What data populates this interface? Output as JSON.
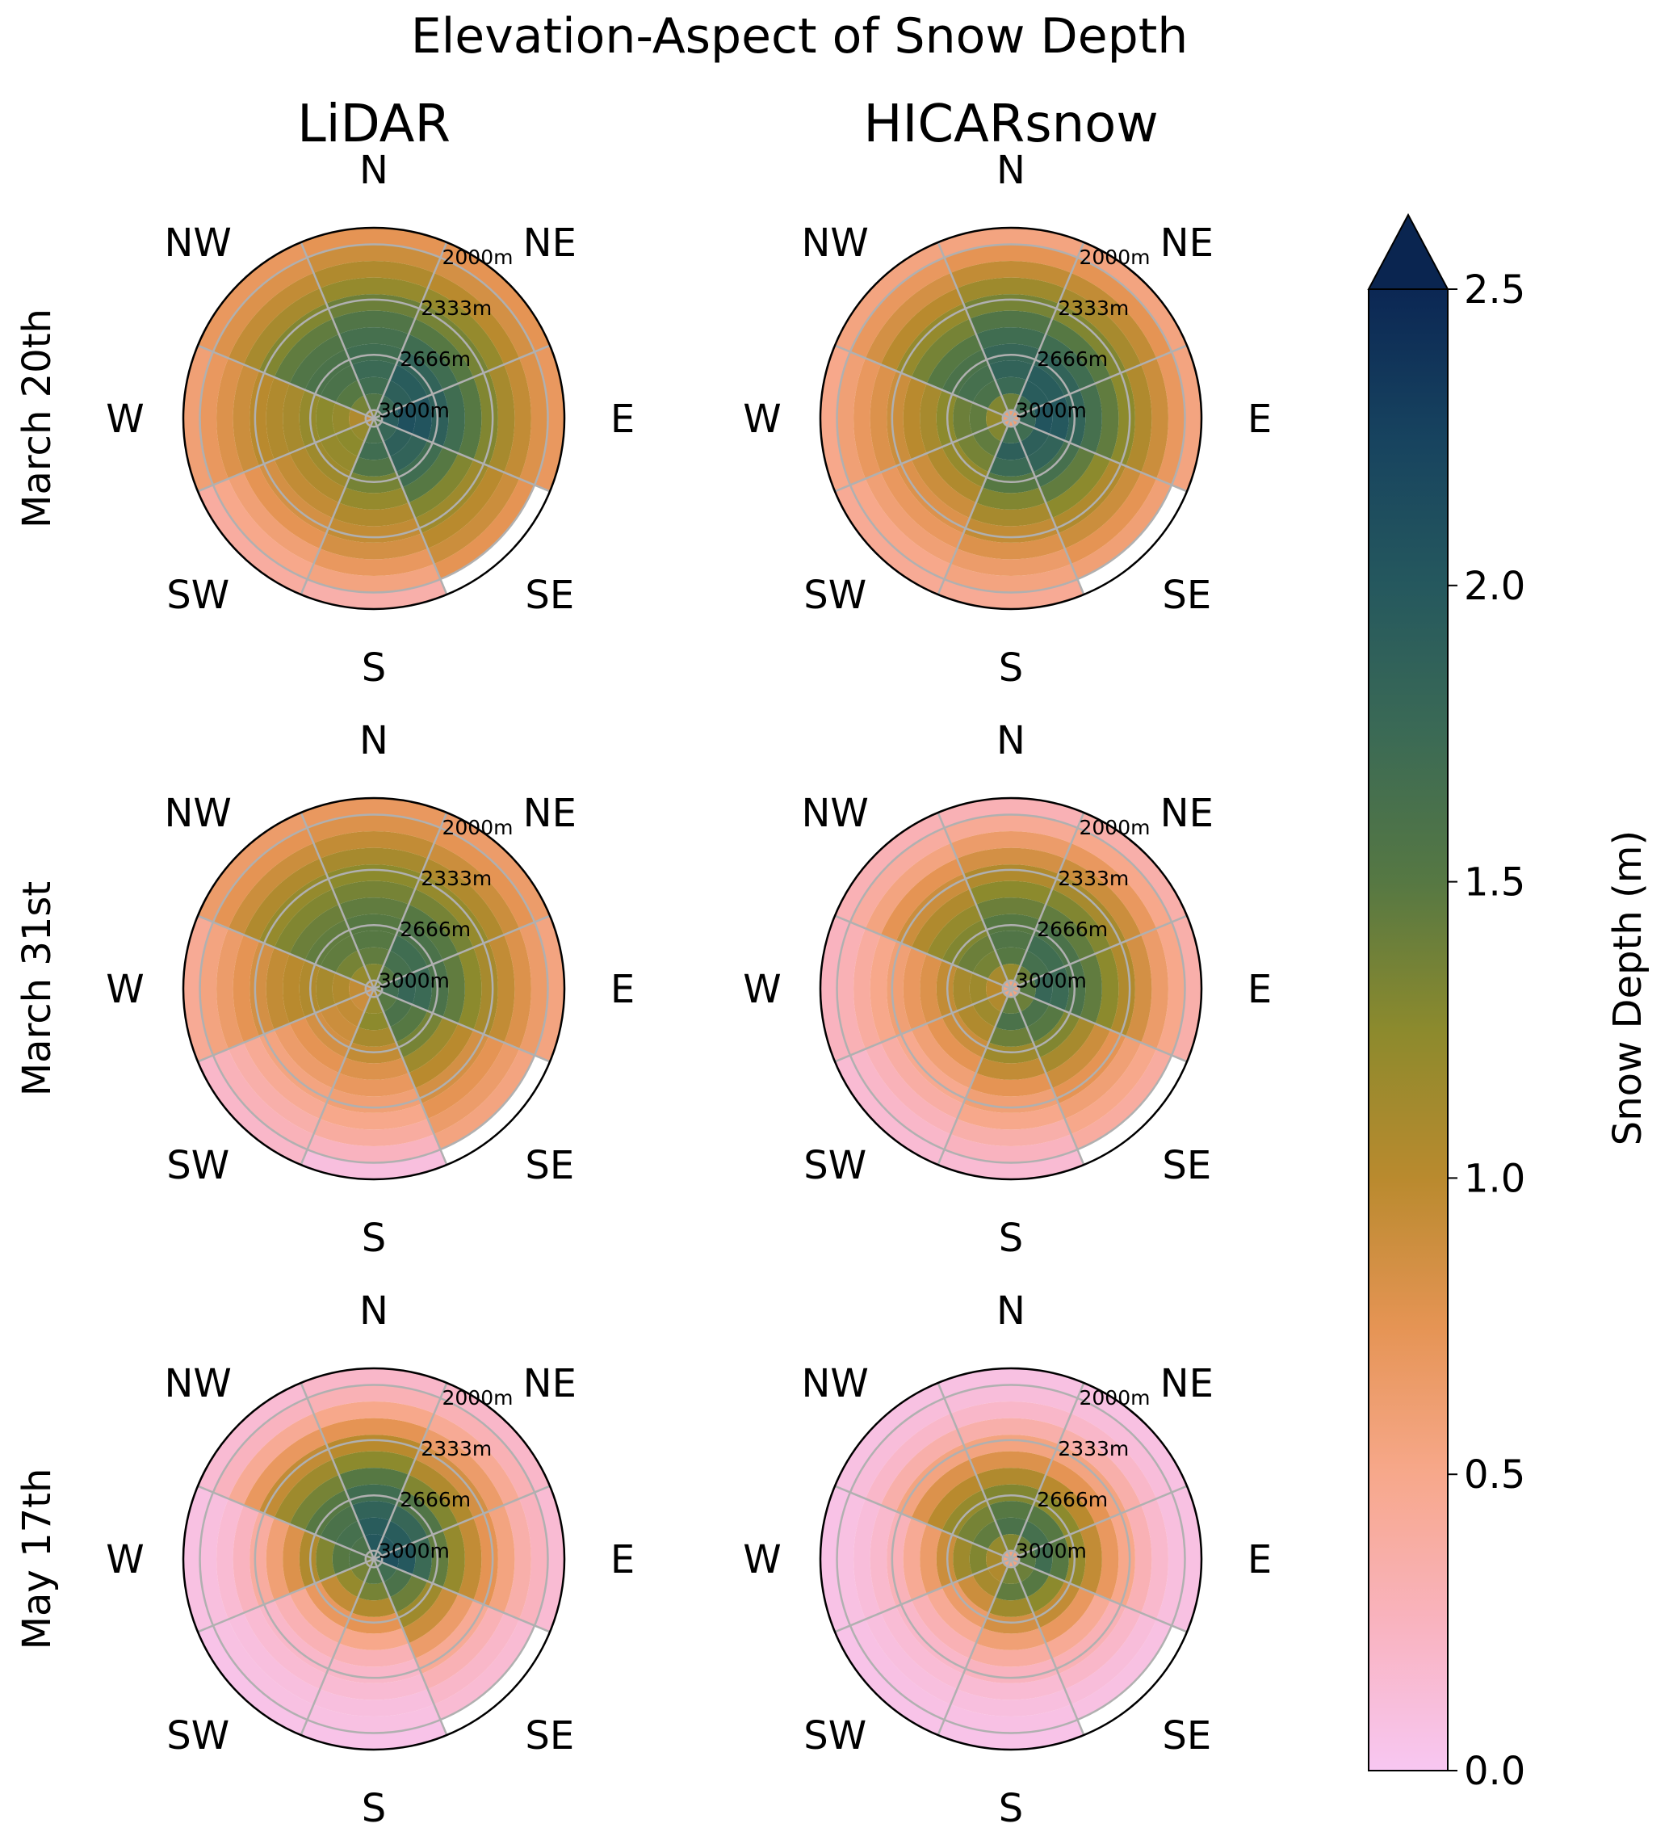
{
  "figure": {
    "title": "Elevation-Aspect of Snow Depth",
    "columns": [
      "LiDAR",
      "HICARsnow"
    ],
    "rows": [
      "March 20th",
      "March 31st",
      "May 17th"
    ]
  },
  "colorbar": {
    "label": "Snow Depth (m)",
    "ticks": [
      "0.0",
      "0.5",
      "1.0",
      "1.5",
      "2.0",
      "2.5"
    ],
    "vmin": 0.0,
    "vmax": 2.5,
    "extend": "max",
    "colors": {
      "stops": [
        {
          "v": 0.0,
          "c": "#f8c7f2"
        },
        {
          "v": 0.25,
          "c": "#f9b3bf"
        },
        {
          "v": 0.5,
          "c": "#f7a88b"
        },
        {
          "v": 0.75,
          "c": "#e59454"
        },
        {
          "v": 1.0,
          "c": "#b98a2e"
        },
        {
          "v": 1.25,
          "c": "#8c8a2d"
        },
        {
          "v": 1.5,
          "c": "#567843"
        },
        {
          "v": 1.75,
          "c": "#3b6a55"
        },
        {
          "v": 2.0,
          "c": "#25585e"
        },
        {
          "v": 2.25,
          "c": "#17435f"
        },
        {
          "v": 2.5,
          "c": "#0b2754"
        }
      ],
      "over": "#0a2550",
      "grid": "#b0b0b0"
    }
  },
  "chart_data": {
    "type": "polar-heatmap",
    "title": "Elevation-Aspect of Snow Depth",
    "aspects": [
      "N",
      "NE",
      "E",
      "SE",
      "S",
      "SW",
      "W",
      "NW"
    ],
    "elevation_ring_labels": [
      "2000m",
      "2333m",
      "2666m",
      "3000m"
    ],
    "elevation_bins_m": [
      1950,
      2050,
      2150,
      2250,
      2350,
      2450,
      2550,
      2650,
      2750,
      2850,
      2950,
      3050
    ],
    "units": "m",
    "panels": [
      {
        "row": "March 20th",
        "column": "LiDAR",
        "sectors": {
          "N": {
            "max_elev": 1950,
            "depth": [
              0.75,
              0.9,
              1.05,
              1.2,
              1.4,
              1.55,
              1.65,
              1.7,
              1.75,
              1.7,
              1.55,
              1.3
            ]
          },
          "NE": {
            "max_elev": 1950,
            "depth": [
              0.75,
              0.85,
              1.0,
              1.2,
              1.35,
              1.5,
              1.7,
              1.85,
              1.95,
              1.9,
              1.75,
              1.5
            ]
          },
          "E": {
            "max_elev": 1950,
            "depth": [
              0.7,
              0.8,
              0.95,
              1.1,
              1.3,
              1.5,
              1.7,
              1.9,
              2.05,
              2.1,
              1.95,
              1.6
            ]
          },
          "SE": {
            "max_elev": 2050,
            "depth": [
              0.65,
              0.75,
              0.9,
              1.0,
              1.15,
              1.3,
              1.5,
              1.7,
              1.85,
              1.9,
              1.8,
              1.5
            ]
          },
          "S": {
            "max_elev": 1950,
            "depth": [
              0.35,
              0.55,
              0.7,
              0.85,
              0.95,
              1.05,
              1.2,
              1.35,
              1.55,
              1.7,
              1.65,
              1.4
            ]
          },
          "SW": {
            "max_elev": 1950,
            "depth": [
              0.4,
              0.5,
              0.6,
              0.75,
              0.85,
              0.95,
              1.05,
              1.15,
              1.2,
              1.25,
              1.2,
              1.0
            ]
          },
          "W": {
            "max_elev": 1950,
            "depth": [
              0.6,
              0.7,
              0.8,
              0.9,
              1.0,
              1.05,
              1.1,
              1.2,
              1.25,
              1.2,
              1.05,
              0.9
            ]
          },
          "NW": {
            "max_elev": 1950,
            "depth": [
              0.7,
              0.8,
              0.95,
              1.1,
              1.3,
              1.45,
              1.55,
              1.6,
              1.6,
              1.5,
              1.35,
              1.1
            ]
          }
        }
      },
      {
        "row": "March 20th",
        "column": "HICARsnow",
        "sectors": {
          "N": {
            "max_elev": 1950,
            "depth": [
              0.55,
              0.75,
              0.95,
              1.15,
              1.35,
              1.55,
              1.7,
              1.8,
              1.85,
              1.75,
              1.4,
              0.6
            ]
          },
          "NE": {
            "max_elev": 1950,
            "depth": [
              0.55,
              0.75,
              0.95,
              1.1,
              1.3,
              1.5,
              1.7,
              1.85,
              1.95,
              1.95,
              1.7,
              0.6
            ]
          },
          "E": {
            "max_elev": 1950,
            "depth": [
              0.55,
              0.7,
              0.9,
              1.05,
              1.25,
              1.45,
              1.65,
              1.85,
              2.0,
              2.05,
              1.8,
              0.6
            ]
          },
          "SE": {
            "max_elev": 2050,
            "depth": [
              0.5,
              0.6,
              0.75,
              0.9,
              1.05,
              1.25,
              1.45,
              1.65,
              1.85,
              1.9,
              1.7,
              0.6
            ]
          },
          "S": {
            "max_elev": 1950,
            "depth": [
              0.45,
              0.55,
              0.65,
              0.8,
              0.95,
              1.1,
              1.3,
              1.5,
              1.75,
              1.9,
              1.7,
              0.6
            ]
          },
          "SW": {
            "max_elev": 1950,
            "depth": [
              0.45,
              0.5,
              0.6,
              0.7,
              0.8,
              0.9,
              1.05,
              1.2,
              1.35,
              1.45,
              1.3,
              0.6
            ]
          },
          "W": {
            "max_elev": 1950,
            "depth": [
              0.5,
              0.6,
              0.7,
              0.8,
              0.9,
              1.0,
              1.1,
              1.25,
              1.4,
              1.45,
              1.2,
              0.6
            ]
          },
          "NW": {
            "max_elev": 1950,
            "depth": [
              0.55,
              0.7,
              0.85,
              1.0,
              1.2,
              1.35,
              1.5,
              1.6,
              1.65,
              1.6,
              1.3,
              0.6
            ]
          }
        }
      },
      {
        "row": "March 31st",
        "column": "LiDAR",
        "sectors": {
          "N": {
            "max_elev": 1950,
            "depth": [
              0.7,
              0.8,
              0.95,
              1.1,
              1.25,
              1.35,
              1.45,
              1.5,
              1.5,
              1.45,
              1.3,
              1.1
            ]
          },
          "NE": {
            "max_elev": 1950,
            "depth": [
              0.65,
              0.75,
              0.9,
              1.05,
              1.2,
              1.35,
              1.5,
              1.6,
              1.7,
              1.65,
              1.5,
              1.3
            ]
          },
          "E": {
            "max_elev": 1950,
            "depth": [
              0.55,
              0.65,
              0.8,
              0.95,
              1.1,
              1.25,
              1.45,
              1.6,
              1.75,
              1.8,
              1.7,
              1.4
            ]
          },
          "SE": {
            "max_elev": 2050,
            "depth": [
              0.45,
              0.55,
              0.65,
              0.75,
              0.85,
              1.0,
              1.15,
              1.35,
              1.5,
              1.6,
              1.5,
              1.2
            ]
          },
          "S": {
            "max_elev": 1950,
            "depth": [
              0.1,
              0.25,
              0.4,
              0.5,
              0.6,
              0.7,
              0.8,
              0.95,
              1.1,
              1.25,
              1.2,
              1.0
            ]
          },
          "SW": {
            "max_elev": 1950,
            "depth": [
              0.2,
              0.28,
              0.35,
              0.45,
              0.55,
              0.65,
              0.75,
              0.85,
              0.9,
              0.95,
              0.9,
              0.8
            ]
          },
          "W": {
            "max_elev": 1950,
            "depth": [
              0.45,
              0.55,
              0.65,
              0.75,
              0.85,
              0.95,
              1.0,
              1.05,
              1.1,
              1.05,
              0.95,
              0.85
            ]
          },
          "NW": {
            "max_elev": 1950,
            "depth": [
              0.65,
              0.75,
              0.9,
              1.05,
              1.2,
              1.3,
              1.4,
              1.45,
              1.45,
              1.35,
              1.2,
              1.0
            ]
          }
        }
      },
      {
        "row": "March 31st",
        "column": "HICARsnow",
        "sectors": {
          "N": {
            "max_elev": 1950,
            "depth": [
              0.3,
              0.45,
              0.65,
              0.85,
              1.05,
              1.25,
              1.4,
              1.5,
              1.55,
              1.5,
              1.2,
              0.55
            ]
          },
          "NE": {
            "max_elev": 1950,
            "depth": [
              0.35,
              0.5,
              0.7,
              0.9,
              1.1,
              1.3,
              1.45,
              1.6,
              1.7,
              1.65,
              1.4,
              0.55
            ]
          },
          "E": {
            "max_elev": 1950,
            "depth": [
              0.35,
              0.5,
              0.65,
              0.85,
              1.05,
              1.25,
              1.45,
              1.6,
              1.75,
              1.8,
              1.5,
              0.55
            ]
          },
          "SE": {
            "max_elev": 2050,
            "depth": [
              0.3,
              0.4,
              0.5,
              0.6,
              0.75,
              0.9,
              1.1,
              1.3,
              1.5,
              1.6,
              1.4,
              0.55
            ]
          },
          "S": {
            "max_elev": 1950,
            "depth": [
              0.15,
              0.25,
              0.35,
              0.5,
              0.6,
              0.75,
              0.95,
              1.15,
              1.4,
              1.6,
              1.45,
              0.55
            ]
          },
          "SW": {
            "max_elev": 1950,
            "depth": [
              0.15,
              0.2,
              0.28,
              0.38,
              0.48,
              0.6,
              0.75,
              0.9,
              1.05,
              1.15,
              1.05,
              0.55
            ]
          },
          "W": {
            "max_elev": 1950,
            "depth": [
              0.25,
              0.3,
              0.4,
              0.5,
              0.6,
              0.7,
              0.8,
              0.95,
              1.1,
              1.15,
              1.0,
              0.55
            ]
          },
          "NW": {
            "max_elev": 1950,
            "depth": [
              0.3,
              0.4,
              0.55,
              0.75,
              0.9,
              1.05,
              1.2,
              1.3,
              1.4,
              1.35,
              1.1,
              0.55
            ]
          }
        }
      },
      {
        "row": "May 17th",
        "column": "LiDAR",
        "sectors": {
          "N": {
            "max_elev": 1950,
            "depth": [
              0.2,
              0.3,
              0.5,
              0.75,
              1.0,
              1.25,
              1.5,
              1.7,
              1.85,
              1.95,
              2.0,
              1.9
            ]
          },
          "NE": {
            "max_elev": 1950,
            "depth": [
              0.2,
              0.3,
              0.45,
              0.65,
              0.85,
              1.05,
              1.3,
              1.55,
              1.8,
              1.95,
              2.0,
              1.9
            ]
          },
          "E": {
            "max_elev": 1950,
            "depth": [
              0.15,
              0.25,
              0.35,
              0.55,
              0.75,
              0.95,
              1.2,
              1.45,
              1.75,
              2.0,
              2.1,
              2.0
            ]
          },
          "SE": {
            "max_elev": 2050,
            "depth": [
              0.1,
              0.15,
              0.2,
              0.3,
              0.45,
              0.65,
              0.9,
              1.15,
              1.4,
              1.6,
              1.7,
              1.6
            ]
          },
          "S": {
            "max_elev": 1950,
            "depth": [
              0.05,
              0.08,
              0.1,
              0.15,
              0.2,
              0.3,
              0.5,
              0.75,
              1.05,
              1.35,
              1.5,
              1.45
            ]
          },
          "SW": {
            "max_elev": 1950,
            "depth": [
              0.05,
              0.08,
              0.1,
              0.15,
              0.2,
              0.3,
              0.45,
              0.7,
              0.95,
              1.2,
              1.35,
              1.3
            ]
          },
          "W": {
            "max_elev": 1950,
            "depth": [
              0.08,
              0.1,
              0.15,
              0.25,
              0.4,
              0.6,
              0.8,
              1.05,
              1.3,
              1.5,
              1.55,
              1.4
            ]
          },
          "NW": {
            "max_elev": 1950,
            "depth": [
              0.15,
              0.25,
              0.45,
              0.7,
              0.95,
              1.15,
              1.35,
              1.5,
              1.6,
              1.65,
              1.6,
              1.5
            ]
          }
        }
      },
      {
        "row": "May 17th",
        "column": "HICARsnow",
        "sectors": {
          "N": {
            "max_elev": 1950,
            "depth": [
              0.08,
              0.12,
              0.2,
              0.35,
              0.55,
              0.8,
              1.05,
              1.3,
              1.5,
              1.6,
              1.3,
              0.55
            ]
          },
          "NE": {
            "max_elev": 1950,
            "depth": [
              0.08,
              0.12,
              0.2,
              0.35,
              0.55,
              0.75,
              1.0,
              1.25,
              1.5,
              1.65,
              1.4,
              0.55
            ]
          },
          "E": {
            "max_elev": 1950,
            "depth": [
              0.08,
              0.1,
              0.18,
              0.3,
              0.5,
              0.7,
              0.95,
              1.2,
              1.5,
              1.7,
              1.5,
              0.55
            ]
          },
          "SE": {
            "max_elev": 2050,
            "depth": [
              0.05,
              0.08,
              0.12,
              0.2,
              0.3,
              0.45,
              0.7,
              0.95,
              1.25,
              1.5,
              1.4,
              0.55
            ]
          },
          "S": {
            "max_elev": 1950,
            "depth": [
              0.05,
              0.07,
              0.1,
              0.15,
              0.25,
              0.4,
              0.6,
              0.85,
              1.15,
              1.45,
              1.35,
              0.55
            ]
          },
          "SW": {
            "max_elev": 1950,
            "depth": [
              0.05,
              0.07,
              0.1,
              0.14,
              0.2,
              0.3,
              0.45,
              0.65,
              0.9,
              1.1,
              1.05,
              0.55
            ]
          },
          "W": {
            "max_elev": 1950,
            "depth": [
              0.06,
              0.08,
              0.12,
              0.18,
              0.28,
              0.45,
              0.65,
              0.9,
              1.15,
              1.3,
              1.1,
              0.55
            ]
          },
          "NW": {
            "max_elev": 1950,
            "depth": [
              0.08,
              0.12,
              0.2,
              0.35,
              0.55,
              0.8,
              1.0,
              1.2,
              1.35,
              1.45,
              1.2,
              0.55
            ]
          }
        }
      }
    ]
  }
}
